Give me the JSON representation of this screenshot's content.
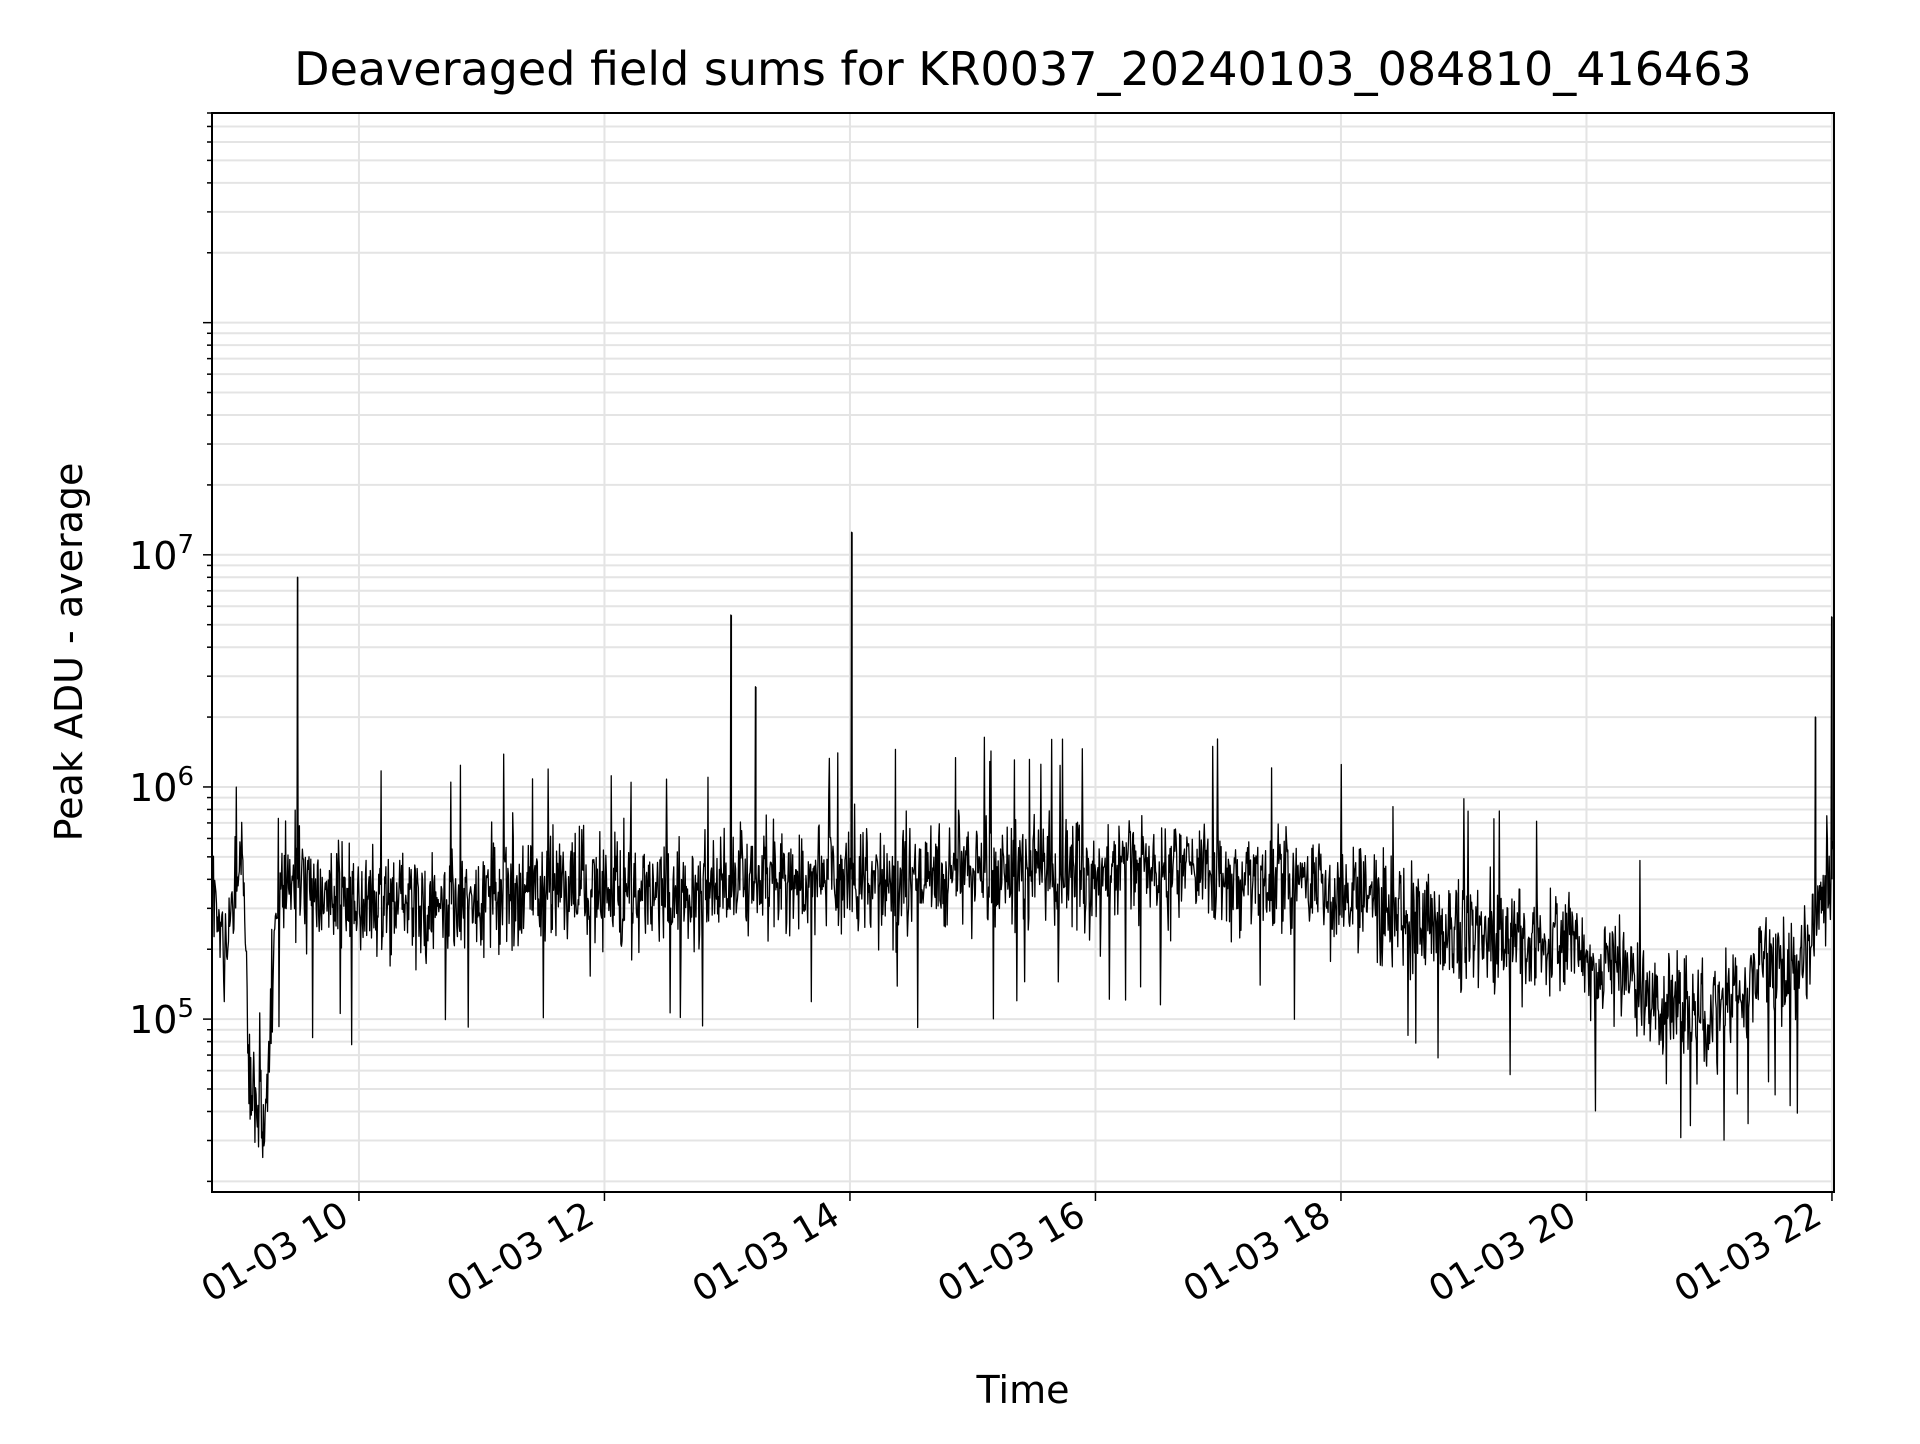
{
  "chart_data": {
    "type": "line",
    "title": "Deaveraged field sums for KR0037_20240103_084810_416463",
    "xlabel": "Time",
    "ylabel": "Peak ADU - average",
    "x_axis_type": "time",
    "xlim": [
      "2024-01-03 08:48:10",
      "2024-01-03 22:01:00"
    ],
    "ylim": [
      18000,
      800000000
    ],
    "y_scale": "log",
    "grid": true,
    "line_color": "#000000",
    "grid_color": "#e4e4e4",
    "x_tick_labels": [
      {
        "value": "2024-01-03 10:00",
        "label": "01-03 10"
      },
      {
        "value": "2024-01-03 12:00",
        "label": "01-03 12"
      },
      {
        "value": "2024-01-03 14:00",
        "label": "01-03 14"
      },
      {
        "value": "2024-01-03 16:00",
        "label": "01-03 16"
      },
      {
        "value": "2024-01-03 18:00",
        "label": "01-03 18"
      },
      {
        "value": "2024-01-03 20:00",
        "label": "01-03 20"
      },
      {
        "value": "2024-01-03 22:00",
        "label": "01-03 22"
      }
    ],
    "y_tick_labels": [
      {
        "value": 100000,
        "base": "10",
        "exp": "5"
      },
      {
        "value": 1000000,
        "base": "10",
        "exp": "6"
      },
      {
        "value": 10000000,
        "base": "10",
        "exp": "7"
      }
    ],
    "series": [
      {
        "x": [
          "2024-01-03 08:48",
          "2024-01-03 08:55",
          "2024-01-03 09:00",
          "2024-01-03 09:03",
          "2024-01-03 09:06",
          "2024-01-03 09:10",
          "2024-01-03 09:14",
          "2024-01-03 09:20",
          "2024-01-03 09:30",
          "2024-01-03 09:33",
          "2024-01-03 09:40",
          "2024-01-03 09:50",
          "2024-01-03 10:00",
          "2024-01-03 10:15",
          "2024-01-03 10:30",
          "2024-01-03 10:45",
          "2024-01-03 11:00",
          "2024-01-03 11:15",
          "2024-01-03 11:30",
          "2024-01-03 11:45",
          "2024-01-03 12:00",
          "2024-01-03 12:20",
          "2024-01-03 12:40",
          "2024-01-03 13:00",
          "2024-01-03 13:03",
          "2024-01-03 13:08",
          "2024-01-03 13:15",
          "2024-01-03 13:30",
          "2024-01-03 13:45",
          "2024-01-03 14:00",
          "2024-01-03 14:02",
          "2024-01-03 14:15",
          "2024-01-03 14:30",
          "2024-01-03 14:45",
          "2024-01-03 15:00",
          "2024-01-03 15:20",
          "2024-01-03 15:40",
          "2024-01-03 16:00",
          "2024-01-03 16:20",
          "2024-01-03 16:40",
          "2024-01-03 17:00",
          "2024-01-03 17:20",
          "2024-01-03 17:40",
          "2024-01-03 17:55",
          "2024-01-03 18:05",
          "2024-01-03 18:20",
          "2024-01-03 18:40",
          "2024-01-03 19:00",
          "2024-01-03 19:20",
          "2024-01-03 19:40",
          "2024-01-03 19:55",
          "2024-01-03 20:00",
          "2024-01-03 20:20",
          "2024-01-03 20:40",
          "2024-01-03 21:00",
          "2024-01-03 21:15",
          "2024-01-03 21:30",
          "2024-01-03 21:45",
          "2024-01-03 21:52",
          "2024-01-03 22:00",
          "2024-01-03 22:01"
        ],
        "y": [
          300000,
          200000,
          350000,
          600000,
          80000,
          40000,
          30000,
          350000,
          420000,
          350000,
          330000,
          320000,
          330000,
          300000,
          320000,
          310000,
          330000,
          360000,
          380000,
          350000,
          340000,
          350000,
          360000,
          380000,
          400000,
          380000,
          390000,
          400000,
          410000,
          420000,
          430000,
          410000,
          400000,
          420000,
          430000,
          440000,
          420000,
          430000,
          440000,
          430000,
          420000,
          410000,
          400000,
          330000,
          350000,
          300000,
          260000,
          240000,
          230000,
          220000,
          230000,
          160000,
          150000,
          110000,
          100000,
          150000,
          170000,
          160000,
          240000,
          380000,
          500000
        ]
      }
    ],
    "spikes": [
      {
        "x": "2024-01-03 09:30",
        "y": 8000000
      },
      {
        "x": "2024-01-03 13:02",
        "y": 5500000
      },
      {
        "x": "2024-01-03 13:14",
        "y": 2700000
      },
      {
        "x": "2024-01-03 14:01",
        "y": 12500000
      },
      {
        "x": "2024-01-03 21:52",
        "y": 2000000
      },
      {
        "x": "2024-01-03 22:00",
        "y": 5400000
      }
    ]
  }
}
